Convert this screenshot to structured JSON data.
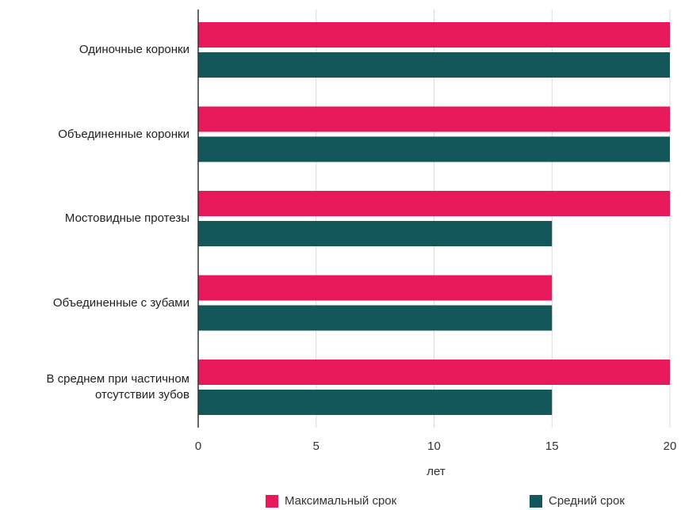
{
  "chart_data": {
    "type": "bar",
    "orientation": "horizontal",
    "categories": [
      [
        "Одиночные коронки"
      ],
      [
        "Объединенные коронки"
      ],
      [
        "Мостовидные протезы"
      ],
      [
        "Объединенные с зубами"
      ],
      [
        "В среднем при частичном",
        "отсутствии зубов"
      ]
    ],
    "series": [
      {
        "name": "Максимальный срок",
        "color": "#e8195a",
        "values": [
          20,
          20,
          20,
          15,
          20
        ]
      },
      {
        "name": "Средний срок",
        "color": "#14575b",
        "values": [
          20,
          20,
          15,
          15,
          15
        ]
      }
    ],
    "xlabel": "лет",
    "xlim": [
      0,
      20
    ],
    "xticks": [
      "0",
      "5",
      "10",
      "15",
      "20"
    ],
    "grid": true,
    "legend_position": "bottom"
  }
}
